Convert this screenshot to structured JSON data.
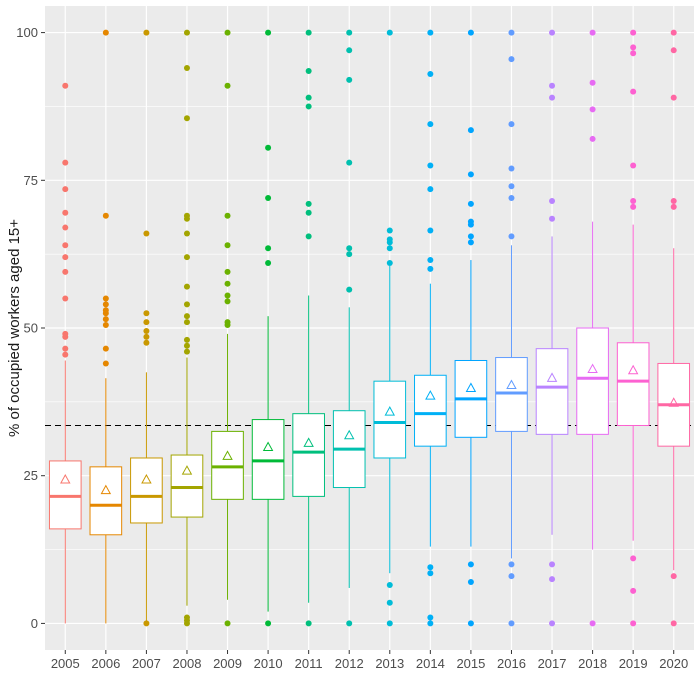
{
  "chart_data": {
    "type": "boxplot",
    "title": "",
    "xlabel": "",
    "ylabel": "% of occupied workers aged 15+",
    "ylim": [
      -4.5,
      104.5
    ],
    "yticks": [
      0,
      25,
      50,
      75,
      100
    ],
    "reference_line": {
      "y": 33.5,
      "style": "dashed"
    },
    "legend": "none",
    "grid": true,
    "categories": [
      "2005",
      "2006",
      "2007",
      "2008",
      "2009",
      "2010",
      "2011",
      "2012",
      "2013",
      "2014",
      "2015",
      "2016",
      "2017",
      "2018",
      "2019",
      "2020"
    ],
    "colors": [
      "#F8766D",
      "#E58700",
      "#C99800",
      "#A3A500",
      "#6BB100",
      "#00BA38",
      "#00BF7D",
      "#00C0AF",
      "#00BCD8",
      "#00B0F6",
      "#00A5FF",
      "#619CFF",
      "#B983FF",
      "#E76BF3",
      "#FD61D1",
      "#FF67A4"
    ],
    "boxes": [
      {
        "year": "2005",
        "q1": 16.0,
        "median": 21.5,
        "q3": 27.5,
        "whisker_low": 0,
        "whisker_high": 44.5,
        "mean": 24.3,
        "outliers": [
          45.5,
          46.5,
          48.5,
          49.0,
          55.0,
          59.5,
          62.0,
          64.0,
          67.0,
          69.5,
          73.5,
          78.0,
          91.0
        ]
      },
      {
        "year": "2006",
        "q1": 15.0,
        "median": 20.0,
        "q3": 26.5,
        "whisker_low": 0,
        "whisker_high": 41.5,
        "mean": 22.5,
        "outliers": [
          44.0,
          46.5,
          50.5,
          51.5,
          52.5,
          53.0,
          54.0,
          55.0,
          69.0,
          100
        ]
      },
      {
        "year": "2007",
        "q1": 17.0,
        "median": 21.5,
        "q3": 28.0,
        "whisker_low": 0,
        "whisker_high": 42.5,
        "mean": 24.3,
        "outliers": [
          0,
          47.5,
          48.5,
          49.5,
          51.0,
          52.5,
          66.0,
          100
        ]
      },
      {
        "year": "2008",
        "q1": 18.0,
        "median": 23.0,
        "q3": 28.5,
        "whisker_low": 3.0,
        "whisker_high": 45.0,
        "mean": 25.8,
        "outliers": [
          0,
          0.5,
          1.0,
          46.0,
          47.0,
          48.0,
          51.0,
          52.0,
          54.0,
          57.0,
          62.0,
          66.0,
          68.5,
          69.0,
          85.5,
          94.0,
          100
        ]
      },
      {
        "year": "2009",
        "q1": 21.0,
        "median": 26.5,
        "q3": 32.5,
        "whisker_low": 4.0,
        "whisker_high": 49.0,
        "mean": 28.3,
        "outliers": [
          0,
          50.5,
          51.0,
          54.5,
          55.5,
          57.5,
          59.5,
          64.0,
          69.0,
          91.0,
          100
        ]
      },
      {
        "year": "2010",
        "q1": 21.0,
        "median": 27.5,
        "q3": 34.5,
        "whisker_low": 2.0,
        "whisker_high": 52.0,
        "mean": 29.8,
        "outliers": [
          0,
          61.0,
          63.5,
          72.0,
          80.5,
          100
        ]
      },
      {
        "year": "2011",
        "q1": 21.5,
        "median": 29.0,
        "q3": 35.5,
        "whisker_low": 3.5,
        "whisker_high": 55.5,
        "mean": 30.5,
        "outliers": [
          0,
          65.5,
          69.5,
          71.0,
          87.5,
          89.0,
          93.5,
          100
        ]
      },
      {
        "year": "2012",
        "q1": 23.0,
        "median": 29.5,
        "q3": 36.0,
        "whisker_low": 6.0,
        "whisker_high": 53.5,
        "mean": 31.8,
        "outliers": [
          0,
          56.5,
          62.5,
          63.5,
          78.0,
          92.0,
          97.0,
          100
        ]
      },
      {
        "year": "2013",
        "q1": 28.0,
        "median": 34.0,
        "q3": 41.0,
        "whisker_low": 8.5,
        "whisker_high": 60.5,
        "mean": 35.8,
        "outliers": [
          0,
          3.5,
          6.5,
          61.0,
          63.5,
          64.5,
          65.0,
          66.5,
          100
        ]
      },
      {
        "year": "2014",
        "q1": 30.0,
        "median": 35.5,
        "q3": 42.0,
        "whisker_low": 13.0,
        "whisker_high": 57.5,
        "mean": 38.5,
        "outliers": [
          0,
          1.0,
          8.5,
          9.5,
          60.0,
          61.5,
          66.5,
          73.5,
          77.5,
          84.5,
          93.0,
          100
        ]
      },
      {
        "year": "2015",
        "q1": 31.5,
        "median": 38.0,
        "q3": 44.5,
        "whisker_low": 13.0,
        "whisker_high": 61.5,
        "mean": 39.8,
        "outliers": [
          0,
          7.0,
          10.0,
          64.5,
          65.5,
          67.5,
          68.0,
          71.0,
          76.0,
          83.5,
          100
        ]
      },
      {
        "year": "2016",
        "q1": 32.5,
        "median": 39.0,
        "q3": 45.0,
        "whisker_low": 11.0,
        "whisker_high": 64.0,
        "mean": 40.3,
        "outliers": [
          0,
          8.0,
          10.0,
          65.5,
          72.0,
          74.0,
          77.0,
          84.5,
          95.5,
          100
        ]
      },
      {
        "year": "2017",
        "q1": 32.0,
        "median": 40.0,
        "q3": 46.5,
        "whisker_low": 15.0,
        "whisker_high": 65.5,
        "mean": 41.5,
        "outliers": [
          0,
          7.5,
          10.0,
          68.5,
          71.5,
          89.0,
          91.0,
          100
        ]
      },
      {
        "year": "2018",
        "q1": 32.0,
        "median": 41.5,
        "q3": 50.0,
        "whisker_low": 12.5,
        "whisker_high": 68.0,
        "mean": 43.0,
        "outliers": [
          0,
          82.0,
          87.0,
          91.5,
          100
        ]
      },
      {
        "year": "2019",
        "q1": 33.5,
        "median": 41.0,
        "q3": 47.5,
        "whisker_low": 14.0,
        "whisker_high": 67.5,
        "mean": 42.8,
        "outliers": [
          0,
          5.5,
          11.0,
          70.5,
          71.5,
          77.5,
          90.0,
          96.5,
          97.5,
          100
        ]
      },
      {
        "year": "2020",
        "q1": 30.0,
        "median": 37.0,
        "q3": 44.0,
        "whisker_low": 9.0,
        "whisker_high": 63.5,
        "mean": 37.3,
        "outliers": [
          0,
          8.0,
          70.5,
          71.5,
          89.0,
          97.0,
          100
        ]
      }
    ]
  }
}
